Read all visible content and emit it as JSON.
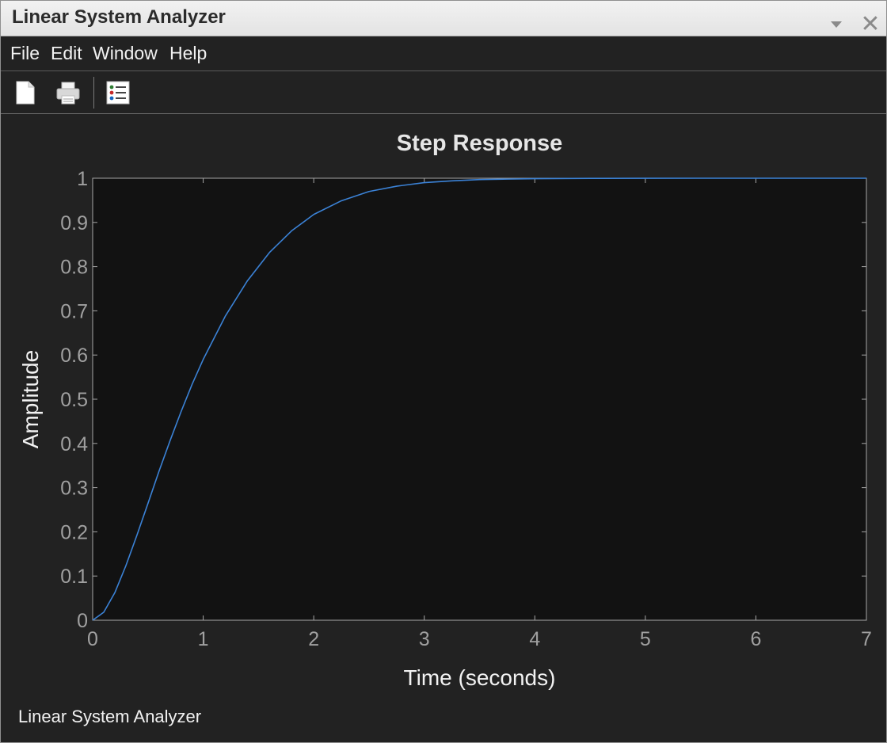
{
  "window": {
    "title": "Linear System Analyzer",
    "close_glyph": "✕",
    "status_text": "Linear System Analyzer"
  },
  "menu": {
    "items": [
      {
        "label": "File"
      },
      {
        "label": "Edit"
      },
      {
        "label": "Window"
      },
      {
        "label": "Help"
      }
    ]
  },
  "toolbar": {
    "buttons": [
      {
        "icon": "new-document-icon"
      },
      {
        "icon": "print-icon"
      },
      {
        "icon": "legend-properties-icon"
      }
    ]
  },
  "colors": {
    "background": "#222222",
    "plot_background": "#121212",
    "axis": "#a6a6a6",
    "tick_label": "#a0a0a0",
    "title_text": "#e6e6e6",
    "line": "#3b82d6"
  },
  "chart_data": {
    "type": "line",
    "title": "Step Response",
    "xlabel": "Time (seconds)",
    "ylabel": "Amplitude",
    "xlim": [
      0,
      7
    ],
    "ylim": [
      0,
      1
    ],
    "xticks": [
      0,
      1,
      2,
      3,
      4,
      5,
      6,
      7
    ],
    "xtick_labels": [
      "0",
      "1",
      "2",
      "3",
      "4",
      "5",
      "6",
      "7"
    ],
    "yticks": [
      0,
      0.1,
      0.2,
      0.3,
      0.4,
      0.5,
      0.6,
      0.7,
      0.8,
      0.9,
      1
    ],
    "ytick_labels": [
      "0",
      "0.1",
      "0.2",
      "0.3",
      "0.4",
      "0.5",
      "0.6",
      "0.7",
      "0.8",
      "0.9",
      "1"
    ],
    "grid": false,
    "series": [
      {
        "x": [
          0,
          0.1,
          0.2,
          0.3,
          0.4,
          0.5,
          0.6,
          0.7,
          0.8,
          0.9,
          1.0,
          1.2,
          1.4,
          1.6,
          1.8,
          2.0,
          2.25,
          2.5,
          2.75,
          3.0,
          3.25,
          3.5,
          3.75,
          4.0,
          4.5,
          5.0,
          5.5,
          6.0,
          6.5,
          7.0
        ],
        "y": [
          0,
          0.018,
          0.062,
          0.123,
          0.192,
          0.264,
          0.337,
          0.406,
          0.472,
          0.534,
          0.59,
          0.688,
          0.768,
          0.832,
          0.881,
          0.918,
          0.949,
          0.97,
          0.982,
          0.99,
          0.994,
          0.997,
          0.998,
          0.999,
          0.9997,
          0.9999,
          1.0,
          1.0,
          1.0,
          1.0
        ]
      }
    ]
  }
}
